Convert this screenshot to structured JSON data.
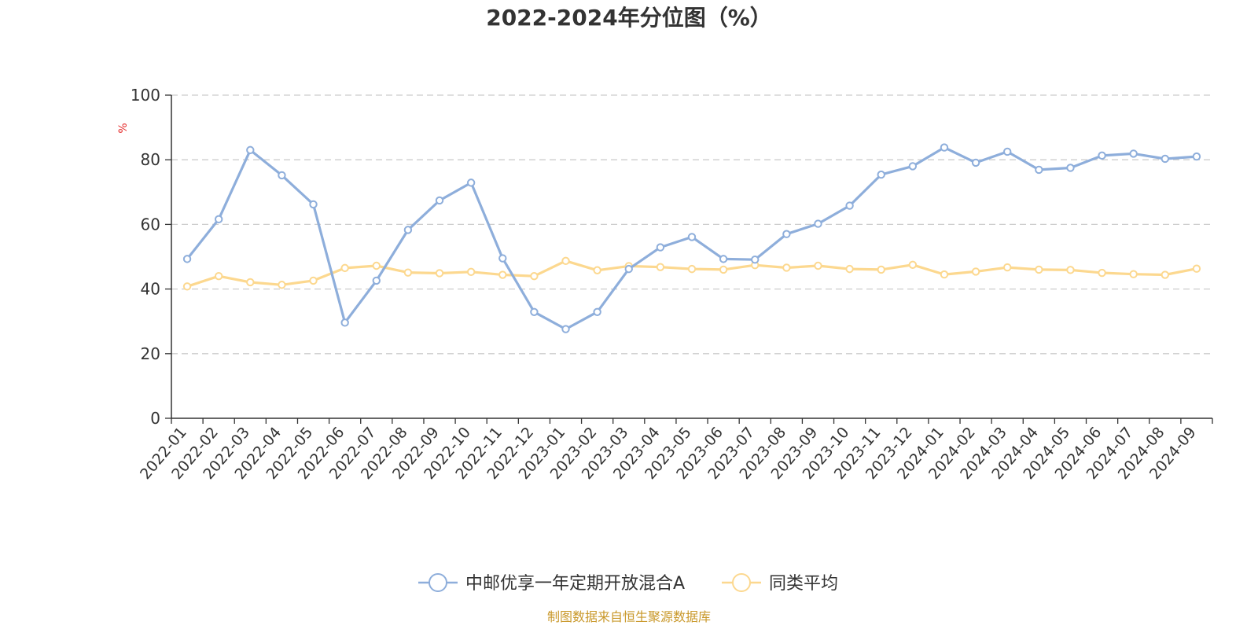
{
  "chart_data": {
    "type": "line",
    "title": "2022-2024年分位图（%）",
    "ylabel": "%",
    "xlabel": "",
    "ylim": [
      0,
      100
    ],
    "yticks": [
      0,
      20,
      40,
      60,
      80,
      100
    ],
    "grid": true,
    "legend_position": "bottom-center",
    "categories": [
      "2022-01",
      "2022-02",
      "2022-03",
      "2022-04",
      "2022-05",
      "2022-06",
      "2022-07",
      "2022-08",
      "2022-09",
      "2022-10",
      "2022-11",
      "2022-12",
      "2023-01",
      "2023-02",
      "2023-03",
      "2023-04",
      "2023-05",
      "2023-06",
      "2023-07",
      "2023-08",
      "2023-09",
      "2023-10",
      "2023-11",
      "2023-12",
      "2024-01",
      "2024-02",
      "2024-03",
      "2024-04",
      "2024-05",
      "2024-06",
      "2024-07",
      "2024-08",
      "2024-09"
    ],
    "series": [
      {
        "name": "中邮优享一年定期开放混合A",
        "color": "#8eaedb",
        "values": [
          49.3,
          61.6,
          83.0,
          75.2,
          66.2,
          29.6,
          42.6,
          58.3,
          67.4,
          72.9,
          49.5,
          32.9,
          27.6,
          32.9,
          46.2,
          52.9,
          56.1,
          49.3,
          49.1,
          57.0,
          60.2,
          65.8,
          75.4,
          78.0,
          83.8,
          79.1,
          82.5,
          76.9,
          77.5,
          81.3,
          81.9,
          80.3,
          81.0
        ]
      },
      {
        "name": "同类平均",
        "color": "#fcd88f",
        "values": [
          40.8,
          44.0,
          42.1,
          41.3,
          42.6,
          46.5,
          47.2,
          45.1,
          44.9,
          45.3,
          44.4,
          44.0,
          48.7,
          45.8,
          47.1,
          46.8,
          46.2,
          46.0,
          47.4,
          46.6,
          47.2,
          46.2,
          46.0,
          47.5,
          44.5,
          45.4,
          46.7,
          46.0,
          45.9,
          45.0,
          44.6,
          44.4,
          46.3
        ]
      }
    ],
    "source": "制图数据来自恒生聚源数据库",
    "colors": {
      "unit": "#e52b2b",
      "source": "#c9982a",
      "axis": "#333333",
      "grid": "#cccccc"
    }
  }
}
